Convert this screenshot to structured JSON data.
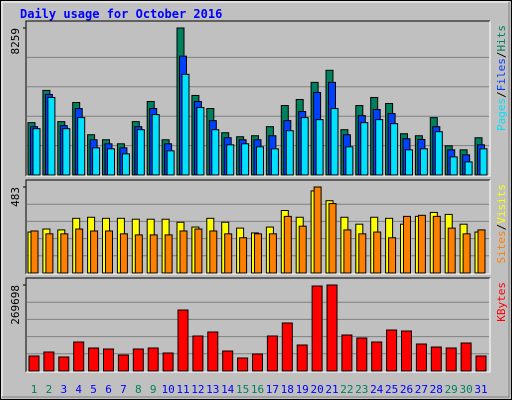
{
  "title": "Daily usage for October 2016",
  "legend_separator": "/",
  "chart_data": [
    {
      "type": "bar",
      "ylim": [
        0,
        8259
      ],
      "yticks": [
        8259
      ],
      "series": [
        {
          "name": "Hits",
          "color": "#00805c",
          "values": [
            2942,
            4752,
            2998,
            4073,
            2263,
            1980,
            1754,
            2998,
            4130,
            1980,
            8259,
            4469,
            3734,
            2376,
            2150,
            2206,
            2715,
            3903,
            4243,
            5204,
            5883,
            2546,
            3903,
            4356,
            4016,
            2319,
            2206,
            3224,
            1640,
            1414,
            2093
          ]
        },
        {
          "name": "Files",
          "color": "#0040ff",
          "values": [
            2715,
            4525,
            2772,
            3734,
            1980,
            1754,
            1527,
            2715,
            3734,
            1754,
            6675,
            4130,
            3055,
            2093,
            1980,
            1980,
            2206,
            3055,
            3564,
            4639,
            5204,
            2263,
            3338,
            3677,
            3451,
            2037,
            2000,
            2715,
            1414,
            1131,
            1697
          ]
        },
        {
          "name": "Pages",
          "color": "#00e0ff",
          "values": [
            2602,
            4356,
            2602,
            3224,
            1527,
            1471,
            1188,
            2546,
            3394,
            1358,
            5657,
            3790,
            2546,
            1697,
            1754,
            1584,
            1471,
            2489,
            3224,
            3111,
            3734,
            1584,
            2942,
            3111,
            2885,
            1414,
            1471,
            2432,
            1018,
            735,
            1471
          ]
        }
      ]
    },
    {
      "type": "bar",
      "ylim": [
        0,
        483
      ],
      "yticks": [
        483
      ],
      "series": [
        {
          "name": "Visits",
          "color": "#ffff00",
          "values": [
            230,
            247,
            242,
            307,
            313,
            307,
            307,
            302,
            302,
            302,
            285,
            258,
            307,
            285,
            252,
            225,
            258,
            351,
            313,
            461,
            406,
            313,
            274,
            313,
            307,
            274,
            318,
            340,
            329,
            274,
            230
          ]
        },
        {
          "name": "Sites",
          "color": "#ff8000",
          "values": [
            236,
            220,
            220,
            247,
            236,
            236,
            220,
            214,
            214,
            214,
            236,
            247,
            236,
            220,
            198,
            220,
            220,
            318,
            263,
            483,
            390,
            242,
            220,
            230,
            198,
            318,
            324,
            318,
            252,
            220,
            242
          ]
        }
      ]
    },
    {
      "type": "bar",
      "ylim": [
        0,
        269698
      ],
      "yticks": [
        269698
      ],
      "categories": [
        "1",
        "2",
        "3",
        "4",
        "5",
        "6",
        "7",
        "8",
        "9",
        "10",
        "11",
        "12",
        "13",
        "14",
        "15",
        "16",
        "17",
        "18",
        "19",
        "20",
        "21",
        "22",
        "23",
        "24",
        "25",
        "26",
        "27",
        "28",
        "29",
        "30",
        "31"
      ],
      "category_colors": [
        "#00805c",
        "#00805c",
        "#0000ff",
        "#0000ff",
        "#0000ff",
        "#0000ff",
        "#0000ff",
        "#00805c",
        "#00805c",
        "#0000ff",
        "#0000ff",
        "#0000ff",
        "#0000ff",
        "#0000ff",
        "#00805c",
        "#00805c",
        "#0000ff",
        "#0000ff",
        "#0000ff",
        "#0000ff",
        "#0000ff",
        "#00805c",
        "#00805c",
        "#0000ff",
        "#0000ff",
        "#0000ff",
        "#0000ff",
        "#0000ff",
        "#00805c",
        "#00805c",
        "#0000ff"
      ],
      "series": [
        {
          "name": "KBytes",
          "color": "#ff0000",
          "values": [
            47040,
            59580,
            43900,
            90940,
            72130,
            69000,
            50180,
            69000,
            72130,
            56450,
            191300,
            109760,
            122300,
            62720,
            40770,
            53310,
            109760,
            150530,
            81540,
            266560,
            269698,
            112900,
            103490,
            90940,
            128580,
            125440,
            84670,
            75260,
            72130,
            87800,
            47040
          ]
        }
      ]
    }
  ]
}
